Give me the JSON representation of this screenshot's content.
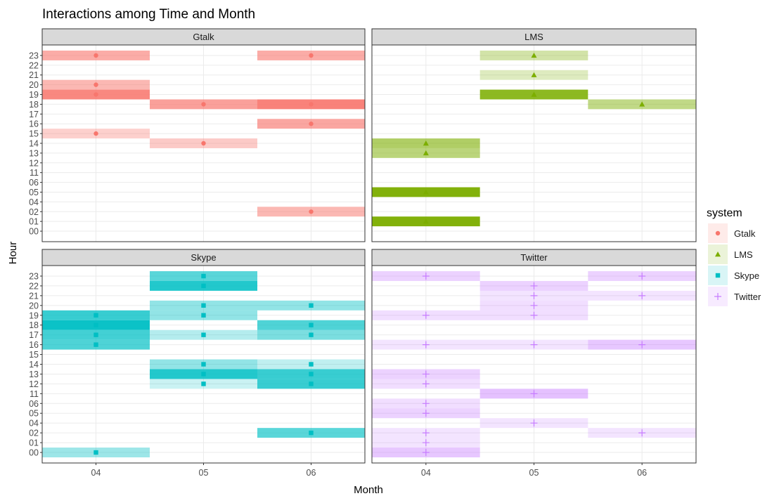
{
  "chart_data": {
    "type": "heatmap",
    "title": "Interactions among Time and Month",
    "xlabel": "Month",
    "ylabel": "Hour",
    "x_categories": [
      "04",
      "05",
      "06"
    ],
    "y_categories": [
      "00",
      "01",
      "02",
      "04",
      "05",
      "06",
      "11",
      "12",
      "13",
      "14",
      "15",
      "16",
      "17",
      "18",
      "19",
      "20",
      "21",
      "22",
      "23"
    ],
    "legend": {
      "title": "system",
      "position": "right",
      "entries": [
        {
          "name": "Gtalk",
          "shape": "circle"
        },
        {
          "name": "LMS",
          "shape": "triangle"
        },
        {
          "name": "Skype",
          "shape": "square"
        },
        {
          "name": "Twitter",
          "shape": "plus"
        }
      ]
    },
    "colors": {
      "Gtalk": "#f8766d",
      "LMS": "#7cae00",
      "Skype": "#00bfc4",
      "Twitter": "#c77cff",
      "strip": "#d9d9d9",
      "grid": "#ebebeb",
      "text": "#4d4d4d"
    },
    "panels": [
      {
        "system": "Gtalk",
        "cells": [
          {
            "month": "04",
            "hour": "23",
            "value": 0.55
          },
          {
            "month": "04",
            "hour": "20",
            "value": 0.45
          },
          {
            "month": "04",
            "hour": "19",
            "value": 0.85
          },
          {
            "month": "04",
            "hour": "15",
            "value": 0.25
          },
          {
            "month": "05",
            "hour": "18",
            "value": 0.65
          },
          {
            "month": "05",
            "hour": "14",
            "value": 0.3
          },
          {
            "month": "06",
            "hour": "23",
            "value": 0.55
          },
          {
            "month": "06",
            "hour": "18",
            "value": 0.9
          },
          {
            "month": "06",
            "hour": "16",
            "value": 0.6
          },
          {
            "month": "06",
            "hour": "02",
            "value": 0.45
          }
        ]
      },
      {
        "system": "LMS",
        "cells": [
          {
            "month": "04",
            "hour": "14",
            "value": 0.55
          },
          {
            "month": "04",
            "hour": "13",
            "value": 0.45
          },
          {
            "month": "04",
            "hour": "05",
            "value": 0.95
          },
          {
            "month": "04",
            "hour": "01",
            "value": 0.95
          },
          {
            "month": "05",
            "hour": "23",
            "value": 0.25
          },
          {
            "month": "05",
            "hour": "21",
            "value": 0.15
          },
          {
            "month": "05",
            "hour": "19",
            "value": 0.85
          },
          {
            "month": "06",
            "hour": "18",
            "value": 0.4
          }
        ]
      },
      {
        "system": "Skype",
        "cells": [
          {
            "month": "04",
            "hour": "19",
            "value": 0.75
          },
          {
            "month": "04",
            "hour": "18",
            "value": 0.95
          },
          {
            "month": "04",
            "hour": "17",
            "value": 0.7
          },
          {
            "month": "04",
            "hour": "16",
            "value": 0.65
          },
          {
            "month": "04",
            "hour": "00",
            "value": 0.3
          },
          {
            "month": "05",
            "hour": "23",
            "value": 0.6
          },
          {
            "month": "05",
            "hour": "22",
            "value": 0.85
          },
          {
            "month": "05",
            "hour": "20",
            "value": 0.35
          },
          {
            "month": "05",
            "hour": "19",
            "value": 0.35
          },
          {
            "month": "05",
            "hour": "17",
            "value": 0.2
          },
          {
            "month": "05",
            "hour": "14",
            "value": 0.35
          },
          {
            "month": "05",
            "hour": "13",
            "value": 0.85
          },
          {
            "month": "05",
            "hour": "12",
            "value": 0.1
          },
          {
            "month": "06",
            "hour": "20",
            "value": 0.35
          },
          {
            "month": "06",
            "hour": "18",
            "value": 0.65
          },
          {
            "month": "06",
            "hour": "17",
            "value": 0.45
          },
          {
            "month": "06",
            "hour": "14",
            "value": 0.15
          },
          {
            "month": "06",
            "hour": "13",
            "value": 0.75
          },
          {
            "month": "06",
            "hour": "12",
            "value": 0.75
          },
          {
            "month": "06",
            "hour": "02",
            "value": 0.6
          }
        ]
      },
      {
        "system": "Twitter",
        "cells": [
          {
            "month": "04",
            "hour": "23",
            "value": 0.25
          },
          {
            "month": "04",
            "hour": "19",
            "value": 0.15
          },
          {
            "month": "04",
            "hour": "16",
            "value": 0.1
          },
          {
            "month": "04",
            "hour": "13",
            "value": 0.25
          },
          {
            "month": "04",
            "hour": "12",
            "value": 0.15
          },
          {
            "month": "04",
            "hour": "06",
            "value": 0.15
          },
          {
            "month": "04",
            "hour": "05",
            "value": 0.25
          },
          {
            "month": "04",
            "hour": "02",
            "value": 0.1
          },
          {
            "month": "04",
            "hour": "01",
            "value": 0.1
          },
          {
            "month": "04",
            "hour": "00",
            "value": 0.35
          },
          {
            "month": "05",
            "hour": "22",
            "value": 0.25
          },
          {
            "month": "05",
            "hour": "21",
            "value": 0.1
          },
          {
            "month": "05",
            "hour": "20",
            "value": 0.15
          },
          {
            "month": "05",
            "hour": "19",
            "value": 0.15
          },
          {
            "month": "05",
            "hour": "16",
            "value": 0.1
          },
          {
            "month": "05",
            "hour": "11",
            "value": 0.4
          },
          {
            "month": "05",
            "hour": "04",
            "value": 0.1
          },
          {
            "month": "06",
            "hour": "23",
            "value": 0.25
          },
          {
            "month": "06",
            "hour": "21",
            "value": 0.1
          },
          {
            "month": "06",
            "hour": "16",
            "value": 0.35
          },
          {
            "month": "06",
            "hour": "02",
            "value": 0.1
          }
        ]
      }
    ]
  }
}
